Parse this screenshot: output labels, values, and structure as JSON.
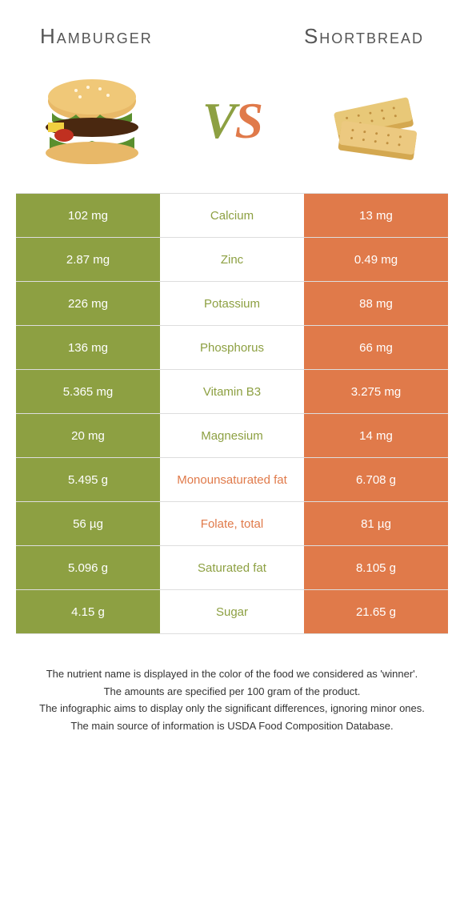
{
  "header": {
    "left_title": "Hamburger",
    "right_title": "Shortbread"
  },
  "vs": {
    "v": "V",
    "s": "S"
  },
  "colors": {
    "left": "#8da042",
    "right": "#e07a4a",
    "border": "#dddddd",
    "bg": "#ffffff"
  },
  "food_images": {
    "left_alt": "hamburger",
    "right_alt": "shortbread"
  },
  "rows": [
    {
      "left": "102 mg",
      "label": "Calcium",
      "right": "13 mg",
      "winner": "left"
    },
    {
      "left": "2.87 mg",
      "label": "Zinc",
      "right": "0.49 mg",
      "winner": "left"
    },
    {
      "left": "226 mg",
      "label": "Potassium",
      "right": "88 mg",
      "winner": "left"
    },
    {
      "left": "136 mg",
      "label": "Phosphorus",
      "right": "66 mg",
      "winner": "left"
    },
    {
      "left": "5.365 mg",
      "label": "Vitamin B3",
      "right": "3.275 mg",
      "winner": "left"
    },
    {
      "left": "20 mg",
      "label": "Magnesium",
      "right": "14 mg",
      "winner": "left"
    },
    {
      "left": "5.495 g",
      "label": "Monounsaturated fat",
      "right": "6.708 g",
      "winner": "right"
    },
    {
      "left": "56 µg",
      "label": "Folate, total",
      "right": "81 µg",
      "winner": "right"
    },
    {
      "left": "5.096 g",
      "label": "Saturated fat",
      "right": "8.105 g",
      "winner": "left"
    },
    {
      "left": "4.15 g",
      "label": "Sugar",
      "right": "21.65 g",
      "winner": "left"
    }
  ],
  "footnote": {
    "l1": "The nutrient name is displayed in the color of the food we considered as 'winner'.",
    "l2": "The amounts are specified per 100 gram of the product.",
    "l3": "The infographic aims to display only the significant differences, ignoring minor ones.",
    "l4": "The main source of information is USDA Food Composition Database."
  }
}
